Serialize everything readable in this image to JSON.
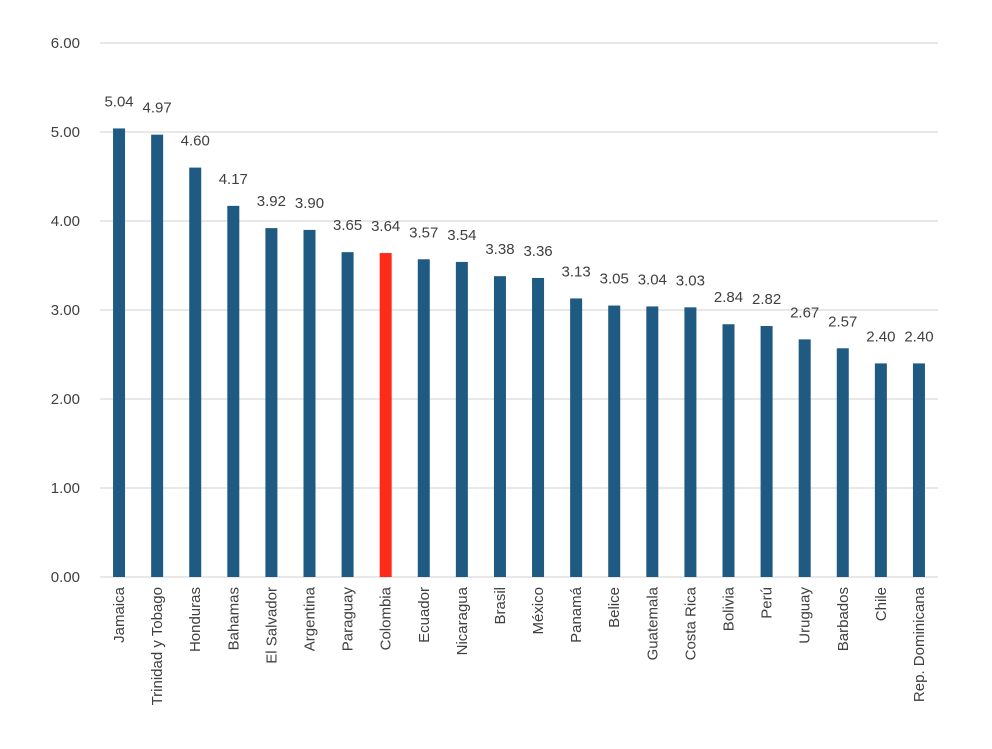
{
  "chart_data": {
    "type": "bar",
    "title": "",
    "xlabel": "",
    "ylabel": "",
    "ylim": [
      0,
      6
    ],
    "y_ticks": [
      "0.00",
      "1.00",
      "2.00",
      "3.00",
      "4.00",
      "5.00",
      "6.00"
    ],
    "grid": true,
    "legend": "none",
    "categories": [
      "Jamaica",
      "Trinidad y Tobago",
      "Honduras",
      "Bahamas",
      "El Salvador",
      "Argentina",
      "Paraguay",
      "Colombia",
      "Ecuador",
      "Nicaragua",
      "Brasil",
      "México",
      "Panamá",
      "Belice",
      "Guatemala",
      "Costa Rica",
      "Bolivia",
      "Perú",
      "Uruguay",
      "Barbados",
      "Chile",
      "Rep. Dominicana"
    ],
    "values": [
      5.04,
      4.97,
      4.6,
      4.17,
      3.92,
      3.9,
      3.65,
      3.64,
      3.57,
      3.54,
      3.38,
      3.36,
      3.13,
      3.05,
      3.04,
      3.03,
      2.84,
      2.82,
      2.67,
      2.57,
      2.4,
      2.4
    ],
    "value_labels": [
      "5.04",
      "4.97",
      "4.60",
      "4.17",
      "3.92",
      "3.90",
      "3.65",
      "3.64",
      "3.57",
      "3.54",
      "3.38",
      "3.36",
      "3.13",
      "3.05",
      "3.04",
      "3.03",
      "2.84",
      "2.82",
      "2.67",
      "2.57",
      "2.40",
      "2.40"
    ],
    "colors": {
      "bar": "#1f5a82",
      "highlight": "#ff2a1a",
      "grid": "#d9d9d9",
      "text": "#404040"
    },
    "highlight_category": "Colombia"
  }
}
